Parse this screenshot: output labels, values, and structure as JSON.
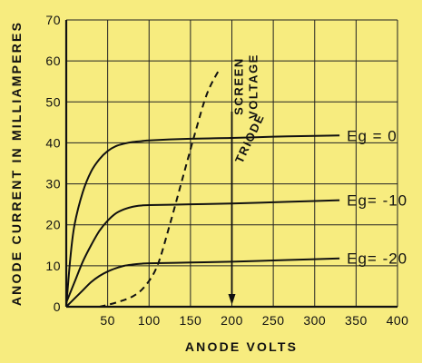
{
  "chart_data": {
    "type": "line",
    "xlabel": "ANODE VOLTS",
    "ylabel": "ANODE CURRENT IN MILLIAMPERES",
    "xlim": [
      0,
      400
    ],
    "ylim": [
      0,
      70
    ],
    "xticks": [
      50,
      100,
      150,
      200,
      250,
      300,
      350,
      400
    ],
    "xtick_labels": [
      "50",
      "100",
      "150",
      "200",
      "250",
      "300",
      "350",
      "400"
    ],
    "yticks": [
      0,
      10,
      20,
      30,
      40,
      50,
      60,
      70
    ],
    "ytick_labels": [
      "0",
      "10",
      "20",
      "30",
      "40",
      "50",
      "60",
      "70"
    ],
    "grid": true,
    "series": [
      {
        "name": "Eg = 0",
        "style": "solid",
        "x": [
          0,
          5,
          10,
          20,
          30,
          40,
          50,
          60,
          70,
          80,
          90,
          100,
          150,
          200,
          250,
          300,
          330
        ],
        "y": [
          0,
          12,
          20,
          28,
          33,
          36,
          38,
          39.2,
          39.8,
          40.2,
          40.4,
          40.6,
          41,
          41.2,
          41.5,
          41.7,
          41.8
        ]
      },
      {
        "name": "Eg=-10",
        "style": "solid",
        "x": [
          0,
          10,
          20,
          30,
          40,
          50,
          60,
          70,
          80,
          90,
          100,
          150,
          200,
          250,
          300,
          330
        ],
        "y": [
          1,
          6,
          11,
          15,
          18.5,
          21,
          22.8,
          23.8,
          24.4,
          24.7,
          24.8,
          25,
          25.2,
          25.5,
          25.8,
          26
        ]
      },
      {
        "name": "Eg=-20",
        "style": "solid",
        "x": [
          0,
          10,
          20,
          30,
          40,
          50,
          60,
          70,
          80,
          90,
          100,
          150,
          200,
          250,
          300,
          330
        ],
        "y": [
          0,
          2,
          4,
          6,
          7.5,
          8.6,
          9.4,
          10,
          10.3,
          10.5,
          10.6,
          10.8,
          11,
          11.3,
          11.6,
          11.8
        ]
      },
      {
        "name": "TRIODE",
        "style": "dashed",
        "x": [
          40,
          60,
          80,
          95,
          110,
          125,
          140,
          155,
          170,
          185
        ],
        "y": [
          0,
          1,
          2.5,
          5,
          10,
          20,
          31,
          42,
          52,
          58
        ]
      }
    ],
    "annotations": [
      {
        "text": "TRIODE",
        "x": 158,
        "y": 50
      },
      {
        "text": "SCREEN VOLTAGE",
        "x": 200,
        "y": 3
      }
    ],
    "curve_labels": [
      "Eg = 0",
      "Eg= -10",
      "Eg= -20"
    ]
  }
}
